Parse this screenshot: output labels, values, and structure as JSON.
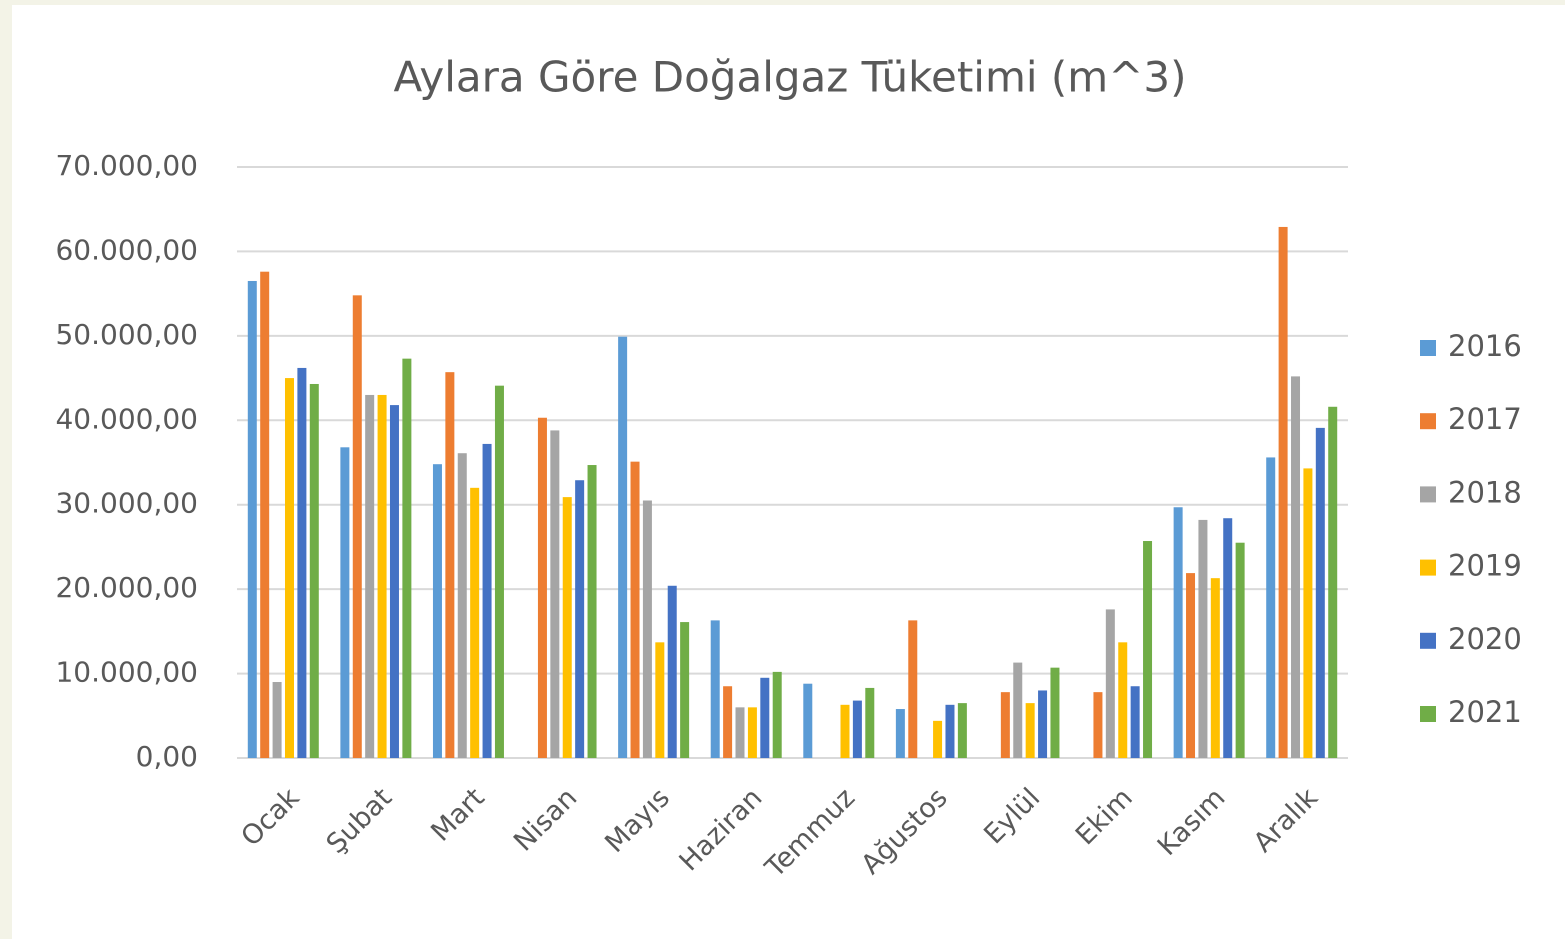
{
  "chart_data": {
    "type": "bar",
    "title": "Aylara Göre Doğalgaz Tüketimi (m^3)",
    "categories": [
      "Ocak",
      "Şubat",
      "Mart",
      "Nisan",
      "Mayıs",
      "Haziran",
      "Temmuz",
      "Ağustos",
      "Eylül",
      "Ekim",
      "Kasım",
      "Aralık"
    ],
    "series": [
      {
        "name": "2016",
        "color": "#5b9bd5",
        "values": [
          56500,
          36800,
          34800,
          null,
          49900,
          16300,
          8800,
          5800,
          null,
          null,
          29700,
          35600
        ]
      },
      {
        "name": "2017",
        "color": "#ed7d31",
        "values": [
          57600,
          54800,
          45700,
          40300,
          35100,
          8500,
          null,
          16300,
          7800,
          7800,
          21900,
          62900
        ]
      },
      {
        "name": "2018",
        "color": "#a5a5a5",
        "values": [
          9000,
          43000,
          36100,
          38800,
          30500,
          6000,
          null,
          null,
          11300,
          17600,
          28200,
          45200
        ]
      },
      {
        "name": "2019",
        "color": "#ffc000",
        "values": [
          45000,
          43000,
          32000,
          30900,
          13700,
          6000,
          6300,
          4400,
          6500,
          13700,
          21300,
          34300
        ]
      },
      {
        "name": "2020",
        "color": "#4472c4",
        "values": [
          46200,
          41800,
          37200,
          32900,
          20400,
          9500,
          6800,
          6300,
          8000,
          8500,
          28400,
          39100
        ]
      },
      {
        "name": "2021",
        "color": "#70ad47",
        "values": [
          44300,
          47300,
          44100,
          34700,
          16100,
          10200,
          8300,
          6500,
          10700,
          25700,
          25500,
          41600
        ]
      }
    ],
    "ylim": [
      0,
      70000
    ],
    "yticks": [
      {
        "value": 0,
        "label": "0,00"
      },
      {
        "value": 10000,
        "label": "10.000,00"
      },
      {
        "value": 20000,
        "label": "20.000,00"
      },
      {
        "value": 30000,
        "label": "30.000,00"
      },
      {
        "value": 40000,
        "label": "40.000,00"
      },
      {
        "value": 50000,
        "label": "50.000,00"
      },
      {
        "value": 60000,
        "label": "60.000,00"
      },
      {
        "value": 70000,
        "label": "70.000,00"
      }
    ],
    "grid": true,
    "legend": "right"
  }
}
